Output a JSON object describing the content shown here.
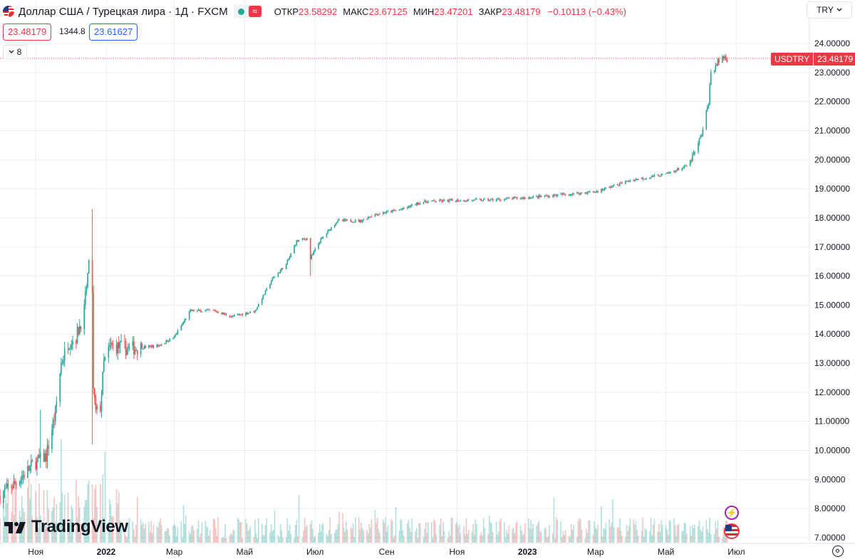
{
  "header": {
    "title": "Доллар США / Турецкая лира · 1Д · FXCM",
    "open_label": "ОТКР",
    "open_value": "23.58292",
    "high_label": "МАКС",
    "high_value": "23.67125",
    "low_label": "МИН",
    "low_value": "23.47201",
    "close_label": "ЗАКР",
    "close_value": "23.48179",
    "change": "−0.10113 (−0.43%)",
    "approx_icon": "≈"
  },
  "quote": {
    "bid": "23.48179",
    "spread": "1344.8",
    "ask": "23.61627"
  },
  "indicator_toggle": {
    "label": "8"
  },
  "currency_select": {
    "label": "TRY"
  },
  "symbol_tag": {
    "symbol": "USDTRY",
    "price": "23.48179"
  },
  "brand": {
    "name": "TradingView"
  },
  "event_icon": "⚡",
  "icons": [
    "flag-icon",
    "approx-icon",
    "chevron-down-icon",
    "gear-icon",
    "tradingview-logo-icon",
    "lightning-icon",
    "dividend-icon"
  ],
  "colors": {
    "up": "#26a69a",
    "down": "#ef5350",
    "price_line": "#f23645",
    "grid": "#e9ecf2"
  },
  "chart_data": {
    "type": "candlestick",
    "y_ticks": [
      "24.00000",
      "23.00000",
      "22.00000",
      "21.00000",
      "20.00000",
      "19.00000",
      "18.00000",
      "17.00000",
      "16.00000",
      "15.00000",
      "14.00000",
      "13.00000",
      "12.00000",
      "11.00000",
      "10.00000",
      "9.00000",
      "8.00000",
      "7.00000"
    ],
    "ylim": [
      7,
      24.5
    ],
    "x_ticks": [
      "Ноя",
      "2022",
      "Мар",
      "Май",
      "Июл",
      "Сен",
      "Ноя",
      "2023",
      "Мар",
      "Май",
      "Июл"
    ],
    "x_range": [
      "2021-10-01",
      "2023-07-31"
    ],
    "last_price": 23.48179,
    "keyframes": [
      [
        "2021-10-01",
        8.45
      ],
      [
        "2021-10-15",
        8.9
      ],
      [
        "2021-11-01",
        9.6
      ],
      [
        "2021-11-10",
        9.8
      ],
      [
        "2021-11-18",
        11.3
      ],
      [
        "2021-11-23",
        13.0
      ],
      [
        "2021-11-29",
        13.7
      ],
      [
        "2021-12-06",
        13.9
      ],
      [
        "2021-12-13",
        14.8
      ],
      [
        "2021-12-17",
        16.5
      ],
      [
        "2021-12-20",
        15.5
      ],
      [
        "2021-12-21",
        12.0
      ],
      [
        "2021-12-23",
        11.3
      ],
      [
        "2021-12-27",
        11.5
      ],
      [
        "2021-12-30",
        13.0
      ],
      [
        "2022-01-05",
        13.6
      ],
      [
        "2022-01-20",
        13.5
      ],
      [
        "2022-02-15",
        13.6
      ],
      [
        "2022-03-01",
        13.9
      ],
      [
        "2022-03-15",
        14.8
      ],
      [
        "2022-04-05",
        14.8
      ],
      [
        "2022-04-20",
        14.6
      ],
      [
        "2022-05-10",
        14.8
      ],
      [
        "2022-05-25",
        15.9
      ],
      [
        "2022-06-06",
        16.4
      ],
      [
        "2022-06-15",
        17.2
      ],
      [
        "2022-06-24",
        17.3
      ],
      [
        "2022-06-27",
        16.6
      ],
      [
        "2022-07-05",
        17.2
      ],
      [
        "2022-07-20",
        17.9
      ],
      [
        "2022-08-10",
        17.9
      ],
      [
        "2022-08-20",
        18.1
      ],
      [
        "2022-09-15",
        18.3
      ],
      [
        "2022-10-01",
        18.55
      ],
      [
        "2022-11-01",
        18.6
      ],
      [
        "2022-12-01",
        18.62
      ],
      [
        "2023-01-01",
        18.7
      ],
      [
        "2023-02-01",
        18.8
      ],
      [
        "2023-03-01",
        18.9
      ],
      [
        "2023-04-01",
        19.3
      ],
      [
        "2023-05-01",
        19.5
      ],
      [
        "2023-05-20",
        19.8
      ],
      [
        "2023-05-27",
        20.3
      ],
      [
        "2023-06-02",
        21.0
      ],
      [
        "2023-06-07",
        22.0
      ],
      [
        "2023-06-09",
        23.0
      ],
      [
        "2023-06-14",
        23.3
      ],
      [
        "2023-06-20",
        23.55
      ],
      [
        "2023-06-23",
        23.48
      ]
    ],
    "notable_wicks": [
      [
        "2021-12-20",
        18.3,
        10.2
      ],
      [
        "2021-11-05",
        11.4,
        9.4
      ],
      [
        "2022-06-27",
        17.2,
        16.0
      ]
    ],
    "volume": {
      "note": "tick volume histogram at bottom, colored by candle direction"
    }
  }
}
